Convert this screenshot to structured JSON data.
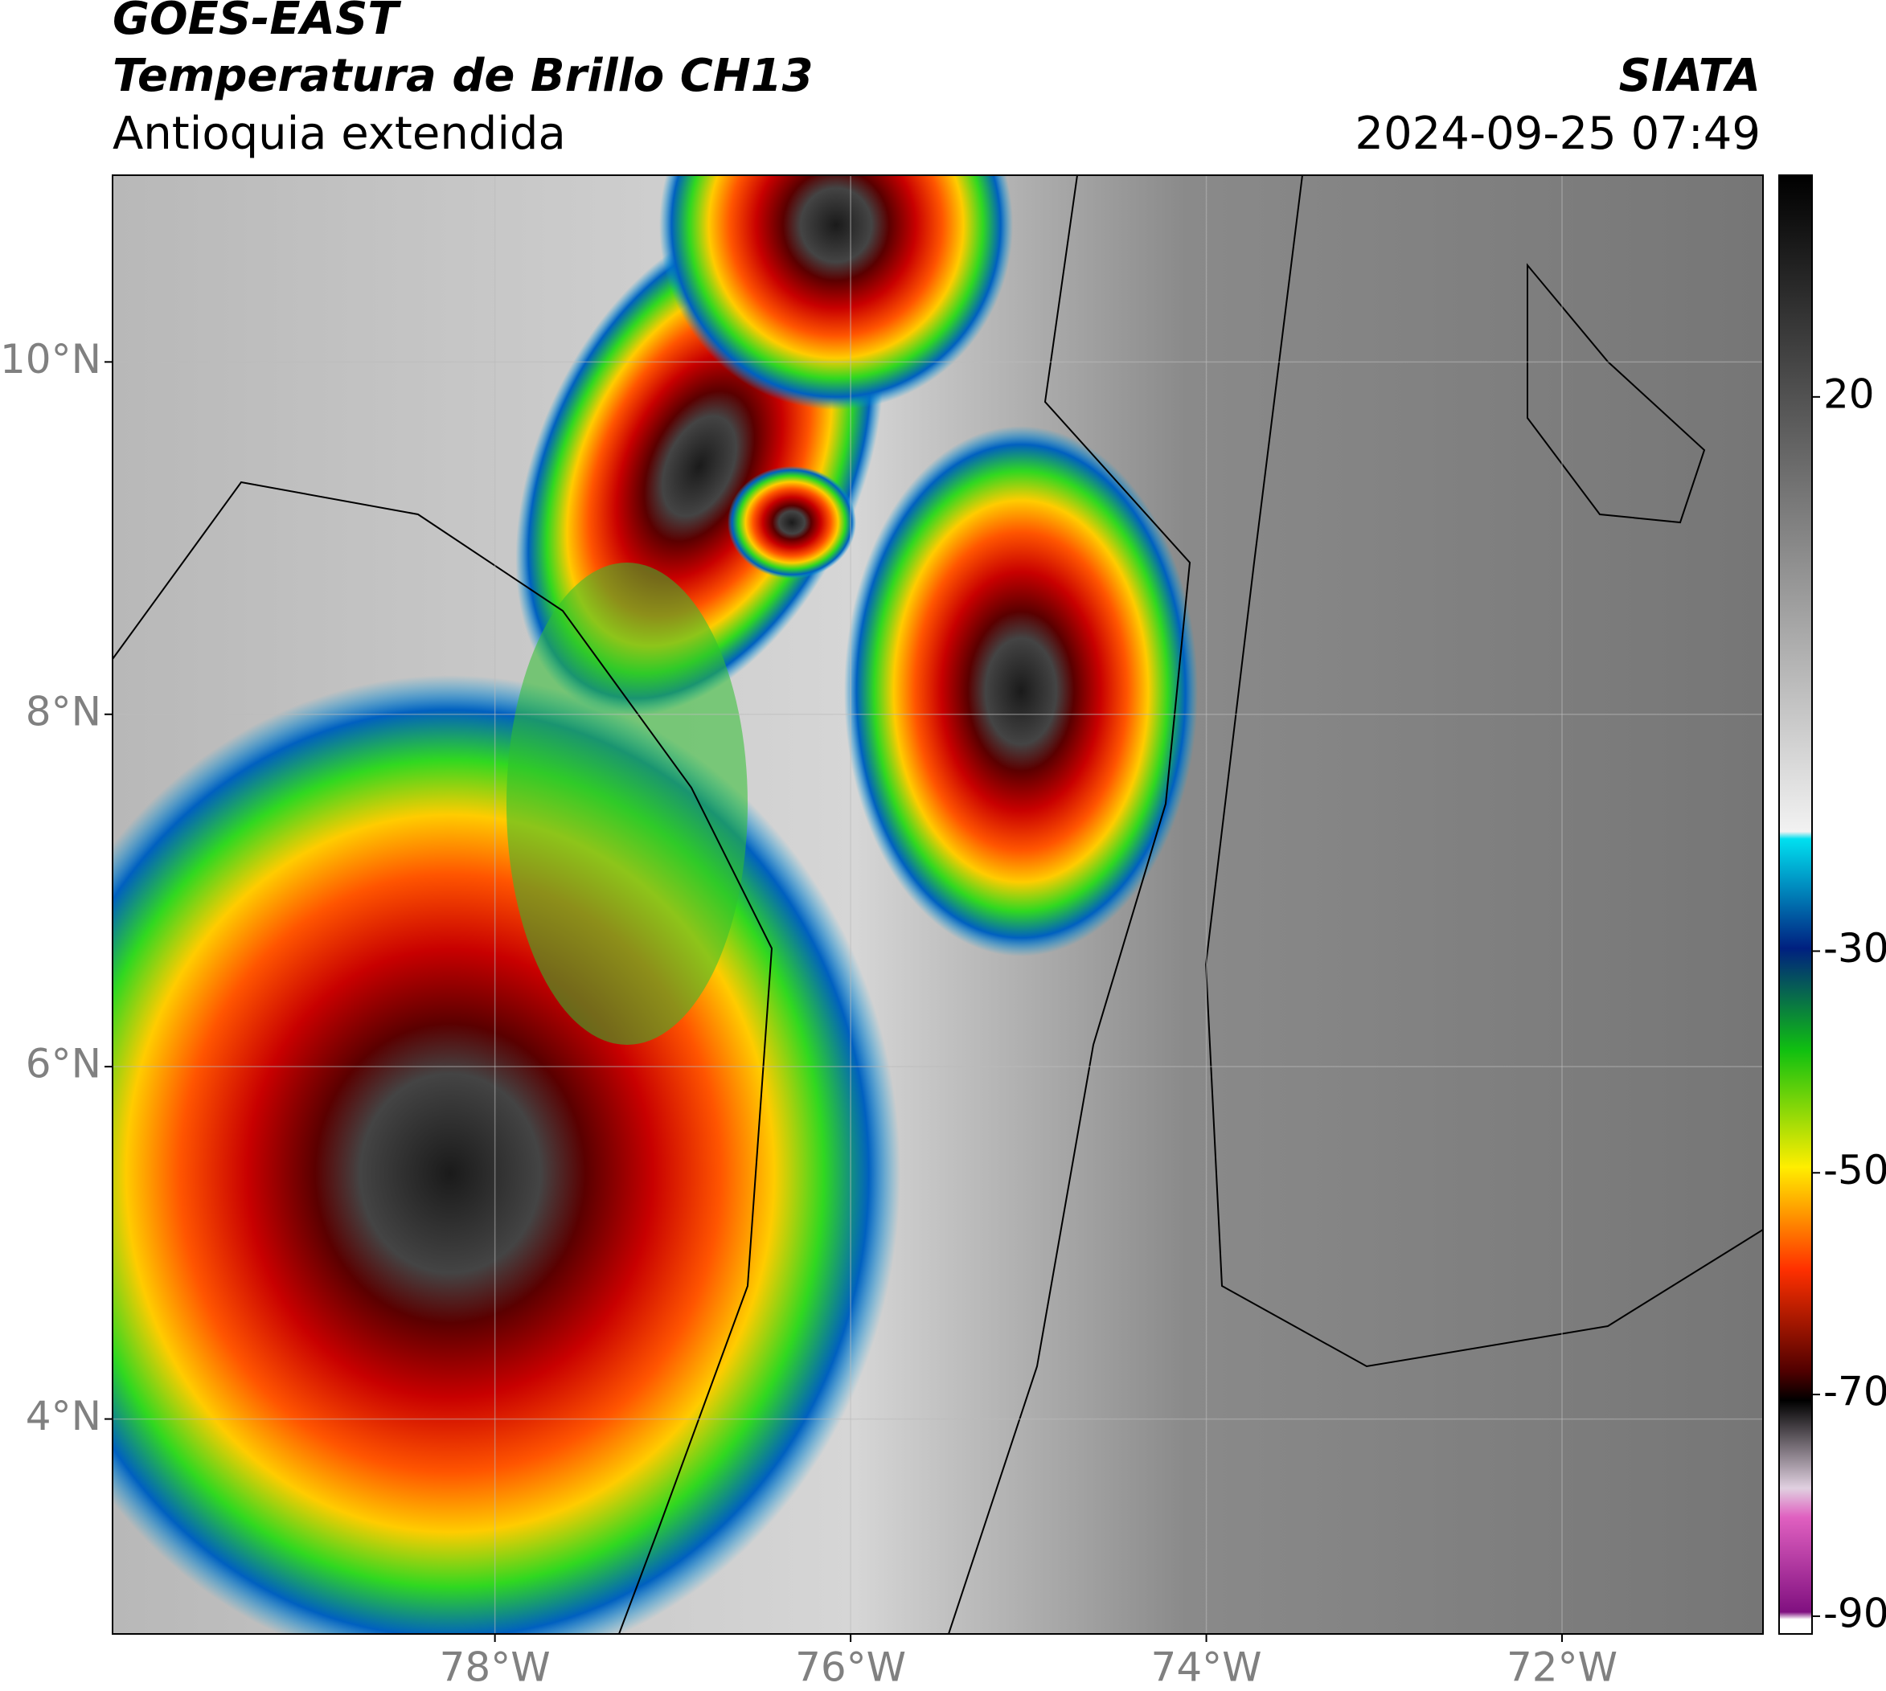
{
  "header": {
    "title": "GOES-EAST",
    "subtitle": "Temperatura de Brillo CH13",
    "region": "Antioquia extendida",
    "source": "SIATA",
    "datetime": "2024-09-25 07:49"
  },
  "map": {
    "xlim": [
      -80.15,
      -70.87
    ],
    "ylim": [
      2.78,
      11.06
    ],
    "xticks": [
      {
        "value": -78,
        "label": "78°W"
      },
      {
        "value": -76,
        "label": "76°W"
      },
      {
        "value": -74,
        "label": "74°W"
      },
      {
        "value": -72,
        "label": "72°W"
      }
    ],
    "yticks": [
      {
        "value": 4,
        "label": "4°N"
      },
      {
        "value": 6,
        "label": "6°N"
      },
      {
        "value": 8,
        "label": "8°N"
      },
      {
        "value": 10,
        "label": "10°N"
      }
    ],
    "grid": true
  },
  "colorbar": {
    "lim": [
      -91.6,
      40
    ],
    "ticks": [
      20,
      -30,
      -50,
      -70,
      -90
    ]
  }
}
